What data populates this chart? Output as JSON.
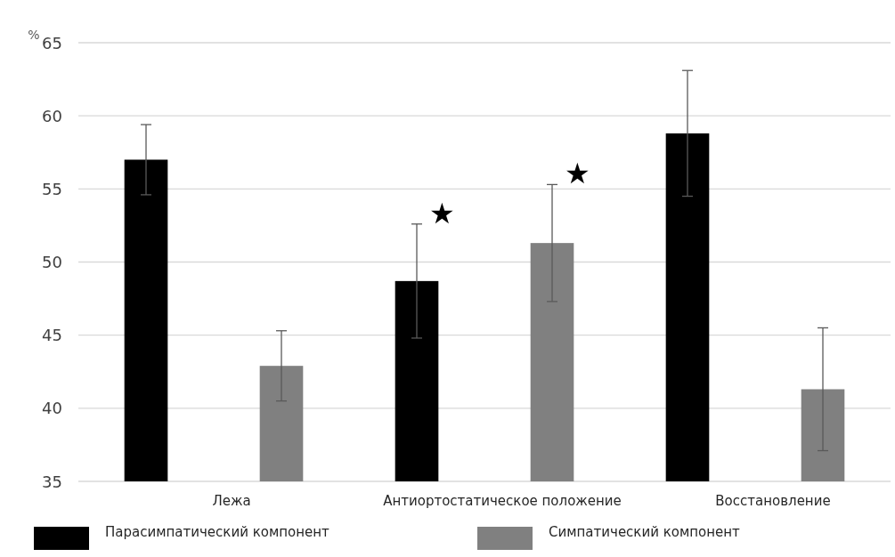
{
  "chart_data": {
    "type": "bar",
    "ylabel": "%",
    "categories": [
      "Лежа",
      "Антиортостатическое положение",
      "Восстановление"
    ],
    "series": [
      {
        "name": "Парасимпатический компонент",
        "color": "#000000",
        "values": [
          57.0,
          48.7,
          58.8
        ],
        "errors": [
          2.4,
          3.9,
          4.3
        ]
      },
      {
        "name": "Симпатический компонент",
        "color": "#808080",
        "values": [
          42.9,
          51.3,
          41.3
        ],
        "errors": [
          2.4,
          4.0,
          4.2
        ]
      }
    ],
    "ylim": [
      35,
      65
    ],
    "yticks": [
      35,
      40,
      45,
      50,
      55,
      60,
      65
    ],
    "grid": "y",
    "legend": "bottom",
    "annotations": [
      "★",
      "★"
    ]
  }
}
